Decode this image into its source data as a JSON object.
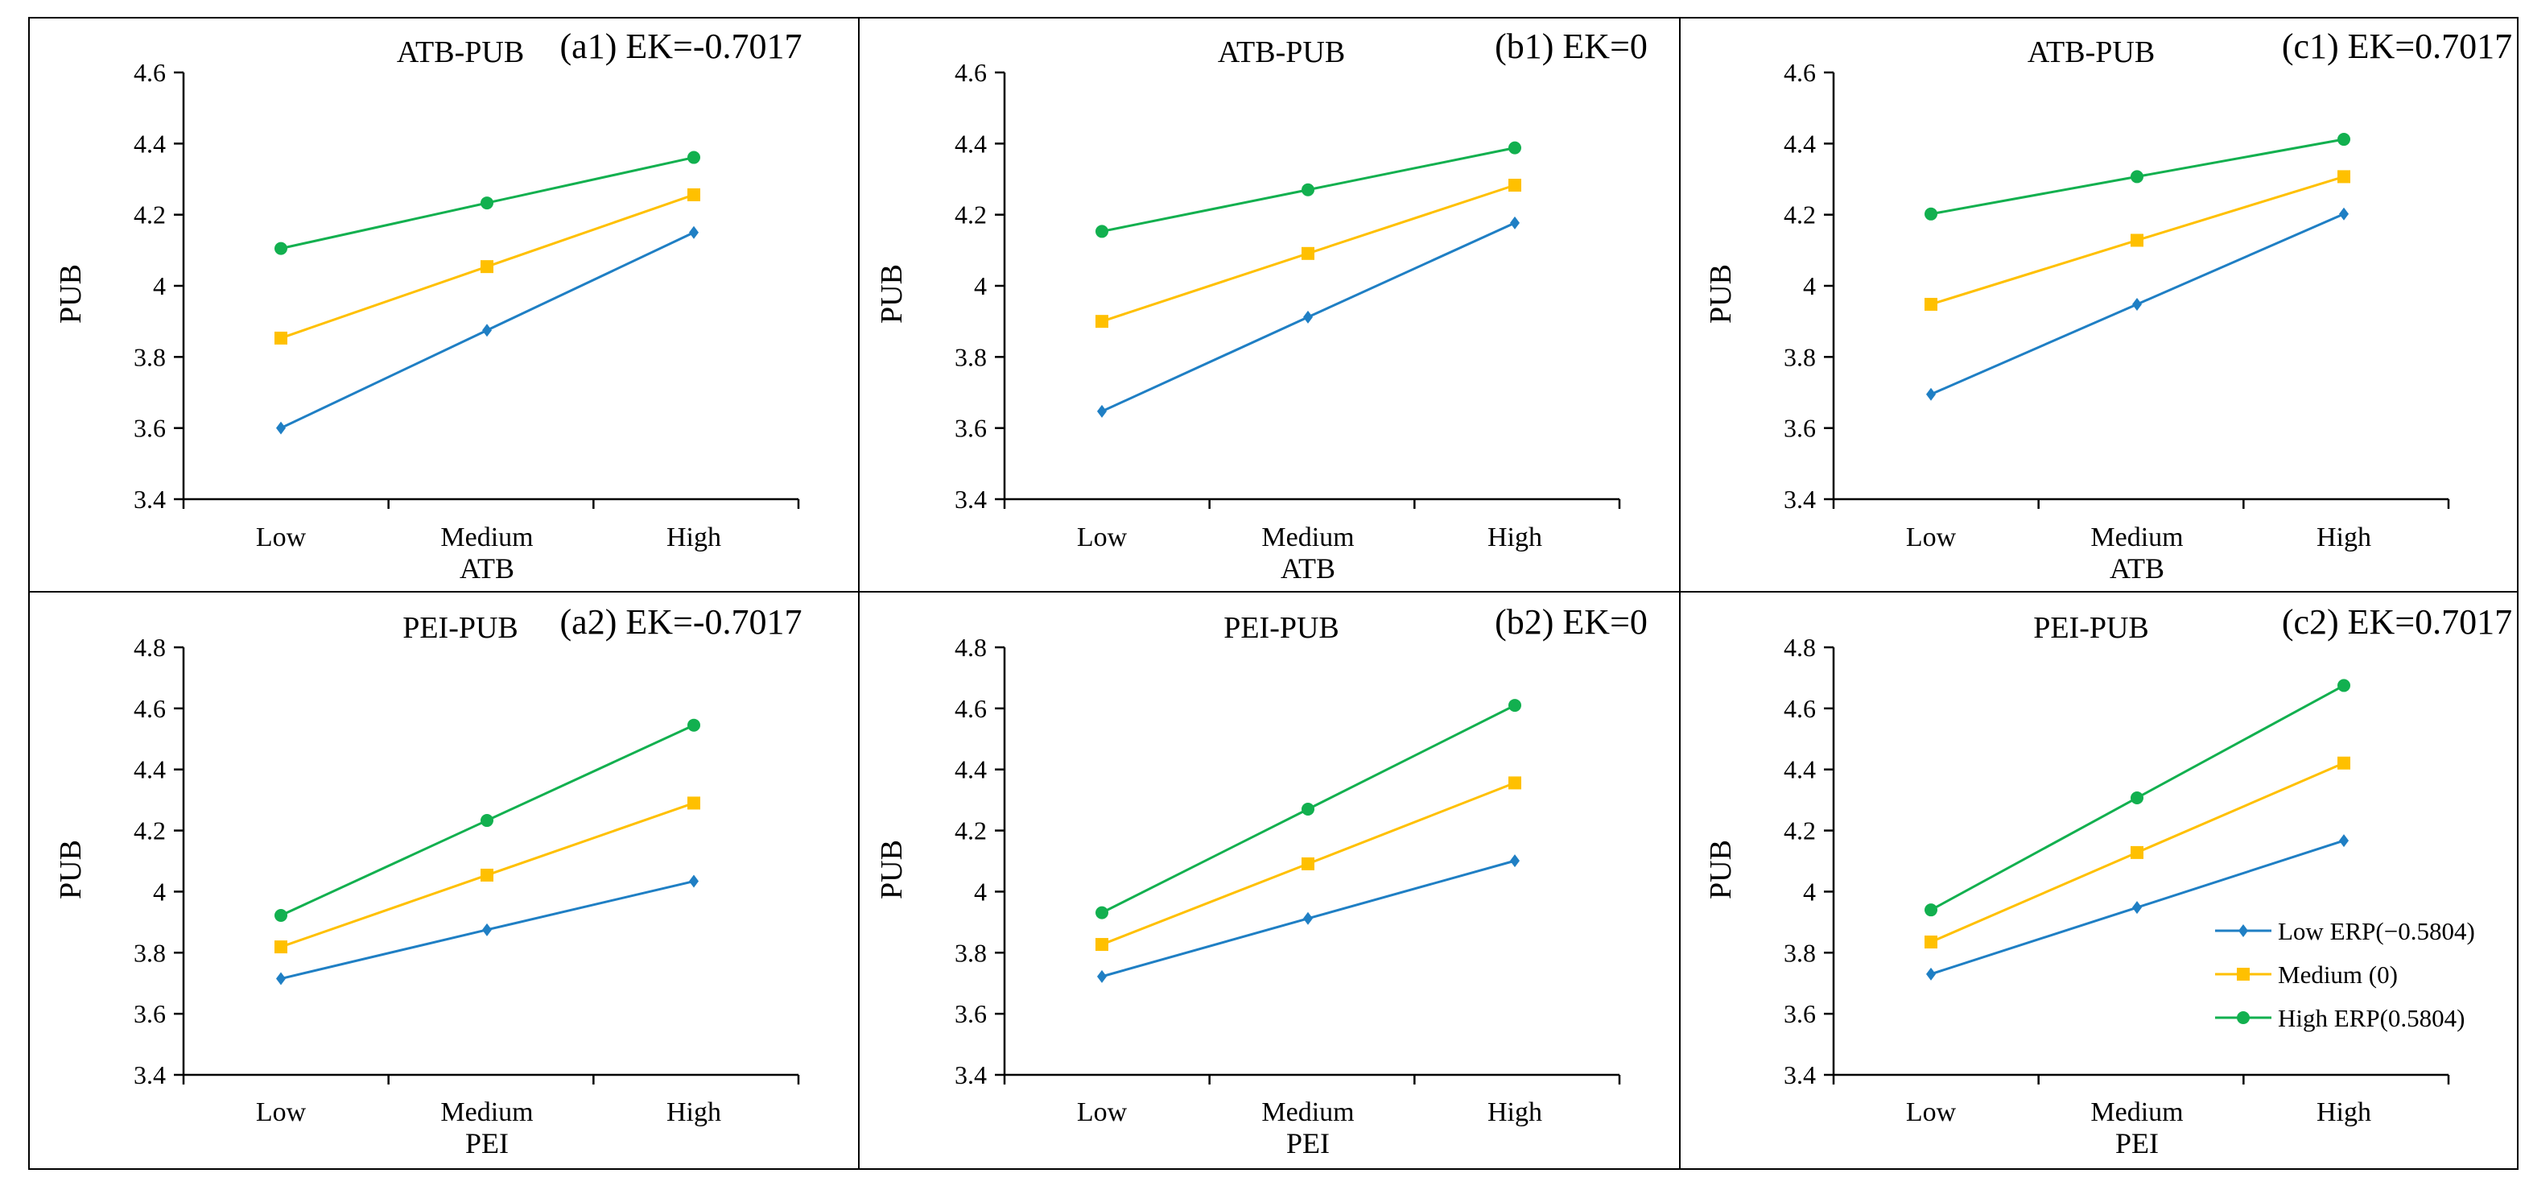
{
  "colors": {
    "low": "#1f7fc4",
    "medium": "#ffc000",
    "high": "#12b04f",
    "axis": "#000000",
    "border": "#000000"
  },
  "legend": {
    "position": "bottom-right of panel c2",
    "entries": [
      {
        "label": "Low ERP(−0.5804)",
        "marker": "diamond",
        "color_key": "low"
      },
      {
        "label": "Medium (0)",
        "marker": "square",
        "color_key": "medium"
      },
      {
        "label": "High ERP(0.5804)",
        "marker": "circle",
        "color_key": "high"
      }
    ]
  },
  "chart_data": [
    {
      "id": "a1",
      "type": "line",
      "title": "ATB-PUB",
      "label": "(a1) EK=-0.7017",
      "xlabel": "ATB",
      "ylabel": "PUB",
      "categories": [
        "Low",
        "Medium",
        "High"
      ],
      "ylim": [
        3.4,
        4.6
      ],
      "yticks": [
        "3.4",
        "3.6",
        "3.8",
        "4",
        "4.2",
        "4.4",
        "4.6"
      ],
      "series": [
        {
          "name": "Low ERP(−0.5804)",
          "values": [
            3.6,
            3.875,
            4.15
          ]
        },
        {
          "name": "Medium (0)",
          "values": [
            3.853,
            4.054,
            4.256
          ]
        },
        {
          "name": "High ERP(0.5804)",
          "values": [
            4.105,
            4.233,
            4.361
          ]
        }
      ]
    },
    {
      "id": "b1",
      "type": "line",
      "title": "ATB-PUB",
      "label": "(b1) EK=0",
      "xlabel": "ATB",
      "ylabel": "PUB",
      "categories": [
        "Low",
        "Medium",
        "High"
      ],
      "ylim": [
        3.4,
        4.6
      ],
      "yticks": [
        "3.4",
        "3.6",
        "3.8",
        "4",
        "4.2",
        "4.4",
        "4.6"
      ],
      "series": [
        {
          "name": "Low ERP(−0.5804)",
          "values": [
            3.647,
            3.912,
            4.177
          ]
        },
        {
          "name": "Medium (0)",
          "values": [
            3.9,
            4.091,
            4.283
          ]
        },
        {
          "name": "High ERP(0.5804)",
          "values": [
            4.153,
            4.27,
            4.388
          ]
        }
      ]
    },
    {
      "id": "c1",
      "type": "line",
      "title": "ATB-PUB",
      "label": "(c1)  EK=0.7017",
      "xlabel": "ATB",
      "ylabel": "PUB",
      "categories": [
        "Low",
        "Medium",
        "High"
      ],
      "ylim": [
        3.4,
        4.6
      ],
      "yticks": [
        "3.4",
        "3.6",
        "3.8",
        "4",
        "4.2",
        "4.4",
        "4.6"
      ],
      "series": [
        {
          "name": "Low ERP(−0.5804)",
          "values": [
            3.695,
            3.948,
            4.202
          ]
        },
        {
          "name": "Medium (0)",
          "values": [
            3.948,
            4.128,
            4.307
          ]
        },
        {
          "name": "High ERP(0.5804)",
          "values": [
            4.202,
            4.307,
            4.412
          ]
        }
      ]
    },
    {
      "id": "a2",
      "type": "line",
      "title": "PEI-PUB",
      "label": "(a2) EK=-0.7017",
      "xlabel": "PEI",
      "ylabel": "PUB",
      "categories": [
        "Low",
        "Medium",
        "High"
      ],
      "ylim": [
        3.4,
        4.8
      ],
      "yticks": [
        "3.4",
        "3.6",
        "3.8",
        "4",
        "4.2",
        "4.4",
        "4.6",
        "4.8"
      ],
      "series": [
        {
          "name": "Low ERP(−0.5804)",
          "values": [
            3.715,
            3.875,
            4.034
          ]
        },
        {
          "name": "Medium (0)",
          "values": [
            3.819,
            4.054,
            4.29
          ]
        },
        {
          "name": "High ERP(0.5804)",
          "values": [
            3.922,
            4.233,
            4.545
          ]
        }
      ]
    },
    {
      "id": "b2",
      "type": "line",
      "title": "PEI-PUB",
      "label": "(b2) EK=0",
      "xlabel": "PEI",
      "ylabel": "PUB",
      "categories": [
        "Low",
        "Medium",
        "High"
      ],
      "ylim": [
        3.4,
        4.8
      ],
      "yticks": [
        "3.4",
        "3.6",
        "3.8",
        "4",
        "4.2",
        "4.4",
        "4.6",
        "4.8"
      ],
      "series": [
        {
          "name": "Low ERP(−0.5804)",
          "values": [
            3.722,
            3.912,
            4.101
          ]
        },
        {
          "name": "Medium (0)",
          "values": [
            3.827,
            4.091,
            4.356
          ]
        },
        {
          "name": "High ERP(0.5804)",
          "values": [
            3.931,
            4.27,
            4.61
          ]
        }
      ]
    },
    {
      "id": "c2",
      "type": "line",
      "title": "PEI-PUB",
      "label": "(c2)  EK=0.7017",
      "xlabel": "PEI",
      "ylabel": "PUB",
      "categories": [
        "Low",
        "Medium",
        "High"
      ],
      "ylim": [
        3.4,
        4.8
      ],
      "yticks": [
        "3.4",
        "3.6",
        "3.8",
        "4",
        "4.2",
        "4.4",
        "4.6",
        "4.8"
      ],
      "series": [
        {
          "name": "Low ERP(−0.5804)",
          "values": [
            3.73,
            3.948,
            4.167
          ]
        },
        {
          "name": "Medium (0)",
          "values": [
            3.835,
            4.128,
            4.421
          ]
        },
        {
          "name": "High ERP(0.5804)",
          "values": [
            3.94,
            4.307,
            4.675
          ]
        }
      ]
    }
  ]
}
